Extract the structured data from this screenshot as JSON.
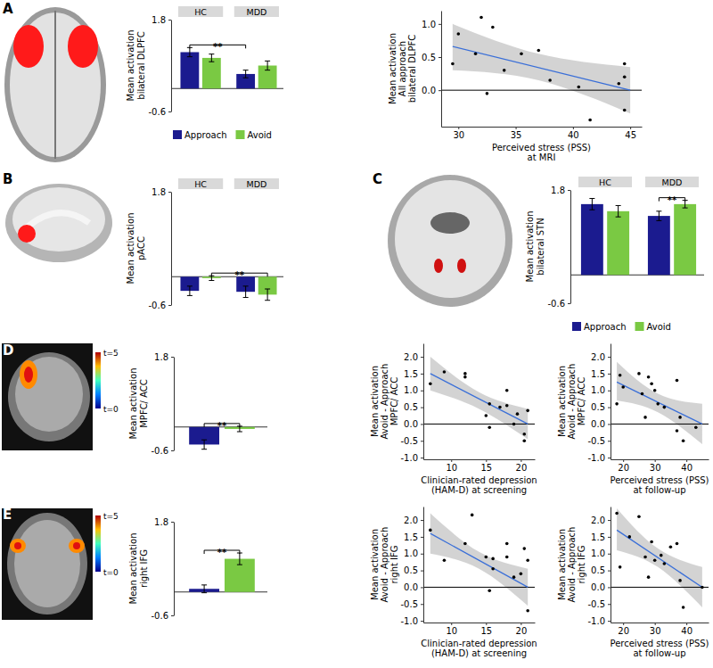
{
  "chart_data": [
    {
      "type": "bar",
      "y_label": [
        "Mean activation",
        "bilateral DLPFC"
      ],
      "categories": [
        "HC",
        "MDD"
      ],
      "series": [
        {
          "name": "Approach",
          "color": "#1b1b8f",
          "values": [
            0.95,
            0.38
          ],
          "errors": [
            0.12,
            0.1
          ]
        },
        {
          "name": "Avoid",
          "color": "#7ac943",
          "values": [
            0.8,
            0.6
          ],
          "errors": [
            0.1,
            0.12
          ]
        }
      ],
      "ylim": [
        -0.6,
        1.8
      ],
      "yticks": [
        -0.6,
        1.8
      ],
      "legend": "bottom",
      "significance": [
        {
          "label": "**",
          "from": {
            "category": 0,
            "series": 0
          },
          "to": {
            "category": 1,
            "series": 0
          }
        }
      ]
    },
    {
      "type": "scatter",
      "y_label": [
        "Mean activation",
        "All approach",
        "bilateral DLPFC"
      ],
      "x_label": [
        "Perceived stress (PSS)",
        "at MRI"
      ],
      "x": [
        29.5,
        30,
        31.5,
        32,
        32.5,
        33,
        34,
        35.5,
        37,
        38,
        40.5,
        41.5,
        44,
        44.5,
        44.5,
        44.5
      ],
      "values": [
        0.4,
        0.85,
        0.55,
        1.1,
        -0.05,
        0.95,
        0.3,
        0.55,
        0.6,
        0.15,
        0.05,
        -0.45,
        0.1,
        0.4,
        0.2,
        -0.3
      ],
      "color": "#000000",
      "fit": {
        "x": [
          29.5,
          45
        ],
        "y": [
          0.66,
          0.0
        ],
        "color": "#3a6fd8"
      },
      "band": {
        "x": [
          29.5,
          37,
          45
        ],
        "lower": [
          0.3,
          0.15,
          -0.35
        ],
        "upper": [
          1.0,
          0.55,
          0.35
        ],
        "color": "#c8c8c8"
      },
      "hline": 0,
      "xlim": [
        28.5,
        46
      ],
      "xticks": [
        30,
        35,
        40,
        45
      ],
      "ylim": [
        -0.55,
        1.2
      ],
      "yticks": [
        {
          "value": 0,
          "label": "0.0"
        },
        0.5,
        {
          "value": 1,
          "label": "1.0"
        }
      ]
    },
    {
      "type": "bar",
      "y_label": [
        "Mean activation",
        "pACC"
      ],
      "categories": [
        "HC",
        "MDD"
      ],
      "series": [
        {
          "name": "Approach",
          "color": "#1b1b8f",
          "values": [
            -0.3,
            -0.32
          ],
          "errors": [
            0.1,
            0.12
          ]
        },
        {
          "name": "Avoid",
          "color": "#7ac943",
          "values": [
            -0.03,
            -0.38
          ],
          "errors": [
            0.05,
            0.12
          ]
        }
      ],
      "ylim": [
        -0.6,
        1.8
      ],
      "yticks": [
        -0.6,
        1.8
      ],
      "significance": [
        {
          "label": "**",
          "from": {
            "category": 0,
            "series": 1
          },
          "to": {
            "category": 1,
            "series": 1
          }
        }
      ]
    },
    {
      "type": "bar",
      "y_label": [
        "Mean activation",
        "bilateral STN"
      ],
      "categories": [
        "HC",
        "MDD"
      ],
      "series": [
        {
          "name": "Approach",
          "color": "#1b1b8f",
          "values": [
            1.5,
            1.25
          ],
          "errors": [
            0.12,
            0.1
          ]
        },
        {
          "name": "Avoid",
          "color": "#7ac943",
          "values": [
            1.35,
            1.5
          ],
          "errors": [
            0.12,
            0.08
          ]
        }
      ],
      "ylim": [
        -0.6,
        1.8
      ],
      "yticks": [
        -0.6,
        1.8
      ],
      "legend": "bottom",
      "significance": [
        {
          "label": "**",
          "from": {
            "category": 1,
            "series": 0
          },
          "to": {
            "category": 1,
            "series": 1
          }
        }
      ]
    },
    {
      "type": "bar",
      "y_label": [
        "Mean activation",
        "MPFC/ ACC"
      ],
      "categories": [
        null
      ],
      "series": [
        {
          "name": "Approach",
          "color": "#1b1b8f",
          "values": [
            -0.45
          ],
          "errors": [
            0.12
          ]
        },
        {
          "name": "Avoid",
          "color": "#7ac943",
          "values": [
            -0.05
          ],
          "errors": [
            0.07
          ]
        }
      ],
      "ylim": [
        -0.6,
        1.8
      ],
      "yticks": [
        -0.6,
        1.8
      ],
      "significance": [
        {
          "label": "**",
          "from": {
            "category": 0,
            "series": 0
          },
          "to": {
            "category": 0,
            "series": 1
          }
        }
      ]
    },
    {
      "type": "scatter",
      "y_label": [
        "Mean activation",
        "Avoid - Approach",
        "MPFC/ ACC"
      ],
      "x_label": [
        "Clinician-rated depression",
        "(HAM-D) at screening"
      ],
      "x": [
        7,
        9,
        12,
        12,
        15,
        15.5,
        15.5,
        17,
        18,
        18,
        19,
        19.5,
        20.5,
        20.5,
        21
      ],
      "values": [
        1.2,
        1.55,
        1.5,
        1.4,
        0.25,
        -0.1,
        0.6,
        0.5,
        1.0,
        0.55,
        0.0,
        0.3,
        -0.5,
        -0.3,
        0.4
      ],
      "color": "#000000",
      "fit": {
        "x": [
          7,
          21
        ],
        "y": [
          1.5,
          0.0
        ],
        "color": "#3a6fd8"
      },
      "band": {
        "x": [
          7,
          14,
          21
        ],
        "lower": [
          1.0,
          0.45,
          -0.45
        ],
        "upper": [
          2.0,
          0.95,
          0.45
        ],
        "color": "#c8c8c8"
      },
      "hline": 0,
      "xlim": [
        6,
        22
      ],
      "xticks": [
        10,
        15,
        20
      ],
      "ylim": [
        -1.05,
        2.4
      ],
      "yticks": [
        {
          "value": -1,
          "label": "-1.0"
        },
        -0.5,
        {
          "value": 0,
          "label": "0.0"
        },
        0.5,
        {
          "value": 1,
          "label": "1.0"
        },
        1.5,
        {
          "value": 2,
          "label": "2.0"
        }
      ]
    },
    {
      "type": "scatter",
      "y_label": [
        "Mean activation",
        "Avoid - Approach",
        "MPFC/ ACC"
      ],
      "x_label": [
        "Perceived stress (PSS)",
        "at follow-up"
      ],
      "x": [
        18,
        19,
        20,
        25,
        26,
        27,
        28,
        29,
        30,
        31,
        33,
        37,
        37,
        38,
        39,
        43
      ],
      "values": [
        0.6,
        1.45,
        1.1,
        1.5,
        0.9,
        0.2,
        1.4,
        1.2,
        1.0,
        0.6,
        0.5,
        1.3,
        -0.2,
        0.2,
        -0.5,
        -0.1
      ],
      "color": "#000000",
      "fit": {
        "x": [
          18,
          45
        ],
        "y": [
          1.25,
          0.0
        ],
        "color": "#3a6fd8"
      },
      "band": {
        "x": [
          18,
          31,
          45
        ],
        "lower": [
          0.7,
          0.35,
          -0.6
        ],
        "upper": [
          1.85,
          0.9,
          0.6
        ],
        "color": "#c8c8c8"
      },
      "hline": 0,
      "xlim": [
        16,
        47
      ],
      "xticks": [
        20,
        30,
        40
      ],
      "ylim": [
        -1.05,
        2.4
      ],
      "yticks": [
        {
          "value": -1,
          "label": "-1.0"
        },
        -0.5,
        {
          "value": 0,
          "label": "0.0"
        },
        0.5,
        {
          "value": 1,
          "label": "1.0"
        },
        1.5,
        {
          "value": 2,
          "label": "2.0"
        }
      ]
    },
    {
      "type": "bar",
      "y_label": [
        "Mean activation",
        "right IFG"
      ],
      "categories": [
        null
      ],
      "series": [
        {
          "name": "Approach",
          "color": "#1b1b8f",
          "values": [
            0.08
          ],
          "errors": [
            0.1
          ]
        },
        {
          "name": "Avoid",
          "color": "#7ac943",
          "values": [
            0.85
          ],
          "errors": [
            0.15
          ]
        }
      ],
      "ylim": [
        -0.6,
        1.8
      ],
      "yticks": [
        -0.6,
        1.8
      ],
      "significance": [
        {
          "label": "**",
          "from": {
            "category": 0,
            "series": 0
          },
          "to": {
            "category": 0,
            "series": 1
          }
        }
      ]
    },
    {
      "type": "scatter",
      "y_label": [
        "Mean activation",
        "Avoid - Approach",
        "right IFG"
      ],
      "x_label": [
        "Clinician-rated depression",
        "(HAM-D) at screening"
      ],
      "x": [
        7,
        9,
        12,
        13,
        15,
        15.5,
        16,
        16,
        18,
        18,
        19,
        20,
        20.5,
        21,
        21
      ],
      "values": [
        1.7,
        0.8,
        1.3,
        2.15,
        0.9,
        -0.1,
        0.55,
        0.85,
        1.3,
        0.9,
        0.3,
        0.4,
        1.15,
        0.8,
        -0.7
      ],
      "color": "#000000",
      "fit": {
        "x": [
          7,
          21
        ],
        "y": [
          1.6,
          0.0
        ],
        "color": "#3a6fd8"
      },
      "band": {
        "x": [
          7,
          14,
          21
        ],
        "lower": [
          1.0,
          0.55,
          -0.55
        ],
        "upper": [
          2.2,
          1.05,
          0.55
        ],
        "color": "#c8c8c8"
      },
      "hline": 0,
      "xlim": [
        6,
        22
      ],
      "xticks": [
        10,
        15,
        20
      ],
      "ylim": [
        -1.05,
        2.4
      ],
      "yticks": [
        {
          "value": -1,
          "label": "-1.0"
        },
        -0.5,
        {
          "value": 0,
          "label": "0.0"
        },
        0.5,
        {
          "value": 1,
          "label": "1.0"
        },
        1.5,
        {
          "value": 2,
          "label": "2.0"
        }
      ]
    },
    {
      "type": "scatter",
      "y_label": [
        "Mean activation",
        "Avoid - Approach",
        "right IFG"
      ],
      "x_label": [
        "Perceived stress (PSS)",
        "at follow-up"
      ],
      "x": [
        18,
        19,
        22,
        25,
        27,
        28,
        29,
        30,
        32,
        33,
        35,
        37,
        38,
        39,
        45
      ],
      "values": [
        2.2,
        0.6,
        1.5,
        2.1,
        0.9,
        0.3,
        1.35,
        0.8,
        0.95,
        0.7,
        1.2,
        1.3,
        0.2,
        -0.6,
        0.0
      ],
      "color": "#000000",
      "fit": {
        "x": [
          18,
          45
        ],
        "y": [
          1.7,
          0.0
        ],
        "color": "#3a6fd8"
      },
      "band": {
        "x": [
          18,
          31,
          45
        ],
        "lower": [
          1.1,
          0.6,
          -0.6
        ],
        "upper": [
          2.35,
          1.15,
          0.6
        ],
        "color": "#c8c8c8"
      },
      "hline": 0,
      "xlim": [
        16,
        47
      ],
      "xticks": [
        20,
        30,
        40
      ],
      "ylim": [
        -1.05,
        2.4
      ],
      "yticks": [
        {
          "value": -1,
          "label": "-1.0"
        },
        -0.5,
        {
          "value": 0,
          "label": "0.0"
        },
        0.5,
        {
          "value": 1,
          "label": "1.0"
        },
        1.5,
        {
          "value": 2,
          "label": "2.0"
        }
      ]
    }
  ],
  "figure": {
    "panel_labels": [
      "A",
      "B",
      "C",
      "D",
      "E"
    ],
    "colorbars": [
      {
        "range": [
          0,
          5
        ],
        "ticks": [
          {
            "value": 5,
            "label": "t=5"
          },
          {
            "value": 0,
            "label": "t=0"
          }
        ]
      },
      {
        "range": [
          0,
          5
        ],
        "ticks": [
          {
            "value": 5,
            "label": "t=5"
          },
          {
            "value": 0,
            "label": "t=0"
          }
        ]
      }
    ]
  }
}
